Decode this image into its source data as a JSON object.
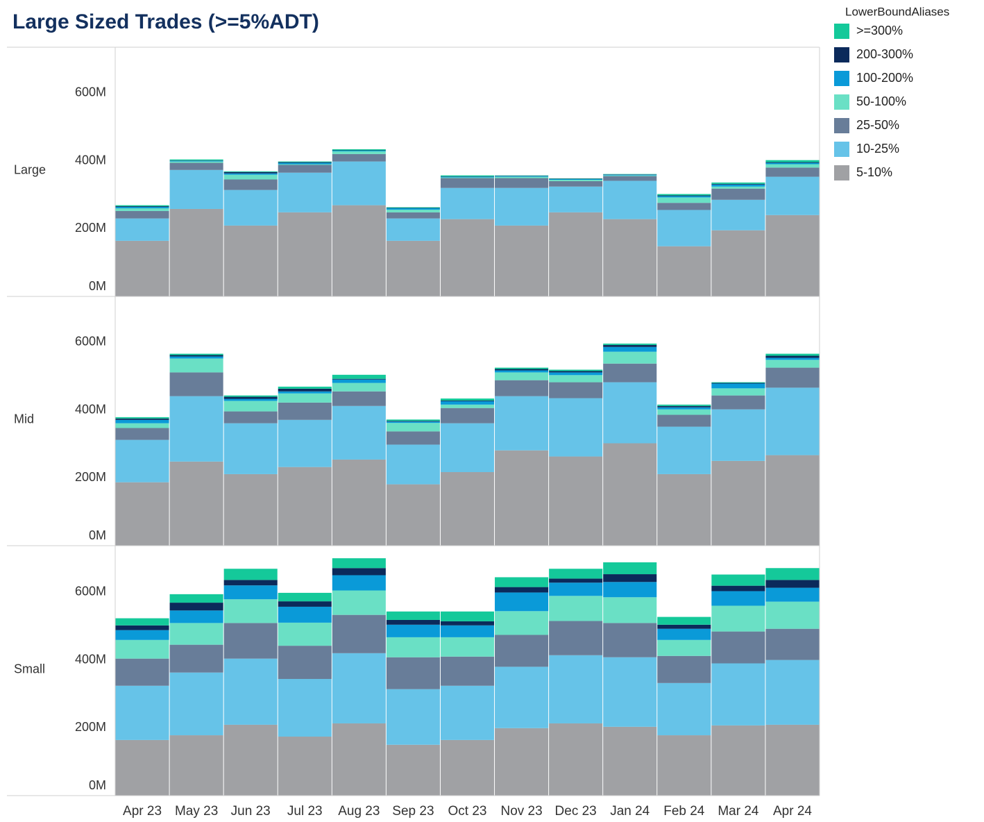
{
  "chart_data": {
    "type": "bar",
    "stacked": true,
    "title": "Large Sized Trades (>=5%ADT)",
    "legend_title": "LowerBoundAliases",
    "categories": [
      "Apr 23",
      "May 23",
      "Jun 23",
      "Jul 23",
      "Aug 23",
      "Sep 23",
      "Oct 23",
      "Nov 23",
      "Dec 23",
      "Jan 24",
      "Feb 24",
      "Mar 24",
      "Apr 24"
    ],
    "ylim": [
      0,
      735
    ],
    "yticks": [
      {
        "value": 0,
        "label": "0M"
      },
      {
        "value": 200,
        "label": "200M"
      },
      {
        "value": 400,
        "label": "400M"
      },
      {
        "value": 600,
        "label": "600M"
      }
    ],
    "panels": [
      {
        "name": "Large",
        "series": [
          {
            "name": "5-10%",
            "color": "#a0a1a4",
            "values": [
              164,
              258,
              209,
              248,
              269,
              164,
              228,
              209,
              248,
              228,
              148,
              195,
              240
            ]
          },
          {
            "name": "10-25%",
            "color": "#66c3e8",
            "values": [
              66,
              115,
              105,
              117,
              129,
              66,
              92,
              111,
              76,
              113,
              107,
              90,
              113
            ]
          },
          {
            "name": "25-50%",
            "color": "#687d99",
            "values": [
              22,
              21,
              31,
              23,
              22,
              18,
              29,
              29,
              16,
              14,
              21,
              33,
              27
            ]
          },
          {
            "name": "50-100%",
            "color": "#6ae0c5",
            "values": [
              8,
              4,
              14,
              2,
              8,
              8,
              2,
              4,
              4,
              2,
              16,
              6,
              10
            ]
          },
          {
            "name": "100-200%",
            "color": "#0a9ad8",
            "values": [
              4,
              2,
              4,
              4,
              2,
              4,
              2,
              2,
              2,
              2,
              4,
              6,
              4
            ]
          },
          {
            "name": "200-300%",
            "color": "#0b2a5b",
            "values": [
              2,
              1,
              4,
              2,
              1,
              1,
              1,
              1,
              1,
              1,
              2,
              2,
              2
            ]
          },
          {
            "name": ">=300%",
            "color": "#14c99a",
            "values": [
              3,
              3,
              2,
              2,
              3,
              2,
              3,
              1,
              1,
              1,
              4,
              4,
              6
            ]
          }
        ]
      },
      {
        "name": "Mid",
        "series": [
          {
            "name": "5-10%",
            "color": "#a0a1a4",
            "values": [
              187,
              248,
              211,
              232,
              254,
              181,
              217,
              281,
              263,
              302,
              211,
              250,
              267
            ]
          },
          {
            "name": "10-25%",
            "color": "#66c3e8",
            "values": [
              125,
              193,
              150,
              139,
              158,
              117,
              144,
              160,
              172,
              180,
              140,
              152,
              199
            ]
          },
          {
            "name": "25-50%",
            "color": "#687d99",
            "values": [
              35,
              70,
              35,
              51,
              43,
              39,
              45,
              47,
              47,
              55,
              35,
              41,
              59
            ]
          },
          {
            "name": "50-100%",
            "color": "#6ae0c5",
            "values": [
              14,
              41,
              31,
              27,
              25,
              25,
              10,
              23,
              21,
              35,
              16,
              21,
              23
            ]
          },
          {
            "name": "100-200%",
            "color": "#0a9ad8",
            "values": [
              10,
              6,
              6,
              6,
              10,
              4,
              10,
              6,
              8,
              14,
              6,
              14,
              6
            ]
          },
          {
            "name": "200-300%",
            "color": "#0b2a5b",
            "values": [
              4,
              4,
              6,
              8,
              2,
              2,
              2,
              4,
              4,
              6,
              4,
              2,
              6
            ]
          },
          {
            "name": ">=300%",
            "color": "#14c99a",
            "values": [
              4,
              4,
              4,
              6,
              12,
              4,
              6,
              4,
              4,
              4,
              4,
              2,
              6
            ]
          }
        ]
      },
      {
        "name": "Small",
        "series": [
          {
            "name": "5-10%",
            "color": "#a0a1a4",
            "values": [
              164,
              178,
              209,
              174,
              213,
              150,
              164,
              199,
              213,
              203,
              178,
              207,
              209
            ]
          },
          {
            "name": "10-25%",
            "color": "#66c3e8",
            "values": [
              160,
              185,
              195,
              170,
              207,
              164,
              160,
              181,
              201,
              205,
              154,
              183,
              191
            ]
          },
          {
            "name": "25-50%",
            "color": "#687d99",
            "values": [
              80,
              82,
              105,
              98,
              113,
              94,
              86,
              94,
              101,
              101,
              80,
              94,
              92
            ]
          },
          {
            "name": "50-100%",
            "color": "#6ae0c5",
            "values": [
              55,
              64,
              70,
              68,
              72,
              59,
              57,
              70,
              74,
              76,
              47,
              76,
              80
            ]
          },
          {
            "name": "100-200%",
            "color": "#0a9ad8",
            "values": [
              29,
              37,
              41,
              47,
              45,
              37,
              35,
              55,
              39,
              45,
              33,
              43,
              41
            ]
          },
          {
            "name": "200-300%",
            "color": "#0b2a5b",
            "values": [
              14,
              23,
              16,
              16,
              21,
              14,
              12,
              16,
              12,
              23,
              12,
              16,
              23
            ]
          },
          {
            "name": ">=300%",
            "color": "#14c99a",
            "values": [
              21,
              25,
              33,
              25,
              29,
              25,
              29,
              29,
              29,
              35,
              23,
              33,
              35
            ]
          }
        ]
      }
    ]
  }
}
